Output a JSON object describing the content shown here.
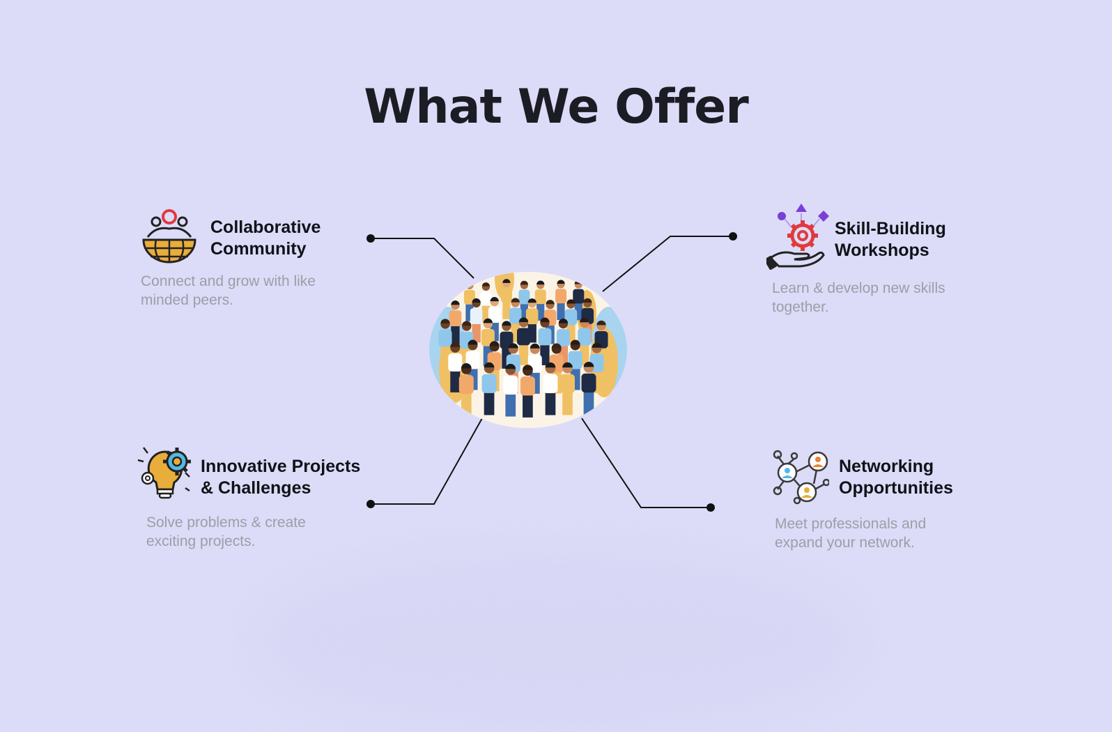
{
  "page": {
    "title": "What We Offer"
  },
  "features": [
    {
      "title_lines": [
        "Collaborative",
        "Community"
      ],
      "description_lines": [
        "Connect and grow with like",
        "minded peers."
      ],
      "icon": "community-globe-icon"
    },
    {
      "title_lines": [
        "Skill-Building",
        "Workshops"
      ],
      "description_lines": [
        "Learn & develop new skills",
        "together."
      ],
      "icon": "hand-gear-icon"
    },
    {
      "title_lines": [
        "Innovative Projects",
        "& Challenges"
      ],
      "description_lines": [
        "Solve problems & create",
        "exciting projects."
      ],
      "icon": "bulb-gears-icon"
    },
    {
      "title_lines": [
        "Networking",
        "Opportunities"
      ],
      "description_lines": [
        "Meet professionals and",
        "expand your network."
      ],
      "icon": "network-people-icon"
    }
  ],
  "center_image": "crowd-illustration",
  "colors": {
    "background": "#dcdcf8",
    "title": "#1c1d24",
    "feature_title": "#111218",
    "description": "#9d9da8",
    "accent_gold": "#e8ad3a",
    "accent_red": "#e03a3e",
    "accent_purple": "#7a3fd6",
    "accent_blue": "#55b7e6"
  }
}
